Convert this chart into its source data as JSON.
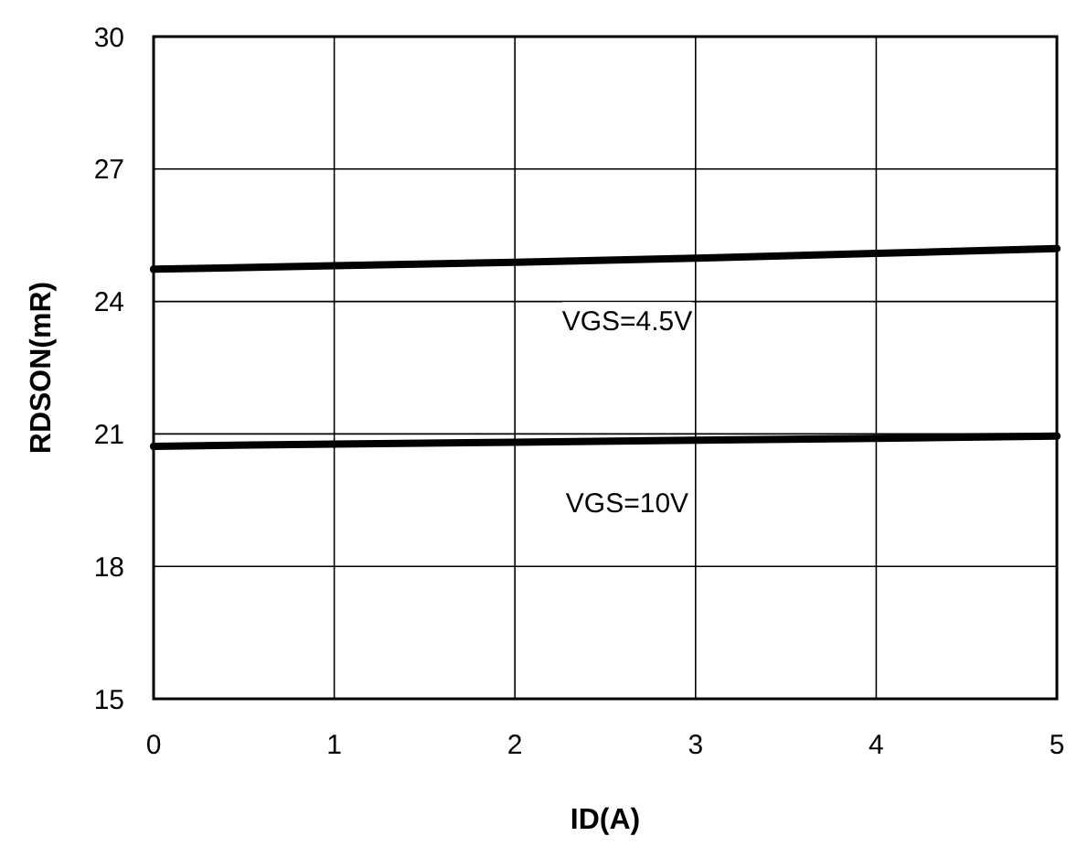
{
  "chart_data": {
    "type": "line",
    "xlabel": "ID(A)",
    "ylabel": "RDSON(mR)",
    "x": [
      0,
      1,
      2,
      3,
      4,
      5
    ],
    "series": [
      {
        "color": "#000000",
        "values": [
          24.73,
          24.81,
          24.89,
          24.98,
          25.09,
          25.2
        ]
      },
      {
        "color": "#000000",
        "values": [
          20.72,
          20.77,
          20.81,
          20.86,
          20.9,
          20.95
        ]
      }
    ],
    "xlim": [
      0,
      5
    ],
    "xticks": [
      0,
      1,
      2,
      3,
      4,
      5
    ],
    "ylim": [
      15,
      30
    ],
    "yticks": [
      15,
      18,
      21,
      24,
      27,
      30
    ],
    "grid": true,
    "marker": "none",
    "line_style": "solid",
    "annotations": [
      "VGS=4.5V",
      "VGS=10V"
    ]
  }
}
